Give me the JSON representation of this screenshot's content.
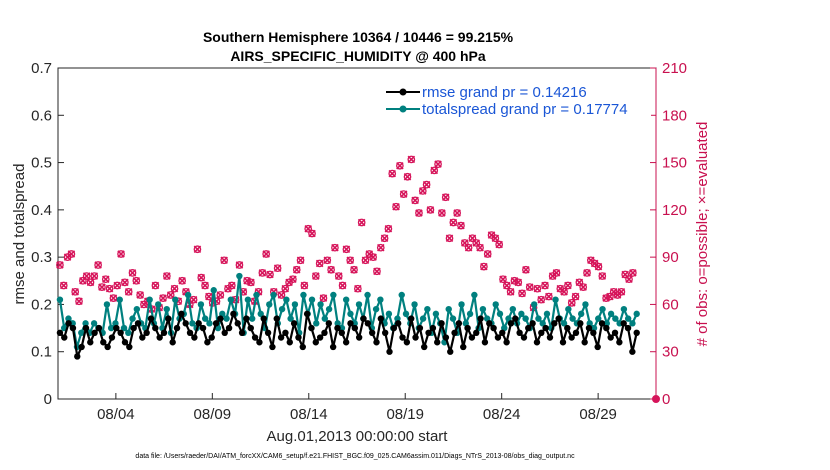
{
  "chart_data": {
    "type": "line",
    "title": "Southern Hemisphere 10364 / 10446 = 99.215%",
    "subtitle": "AIRS_SPECIFIC_HUMIDITY @ 400 hPa",
    "xlabel": "Aug.01,2013 00:00:00 start",
    "ylabel": "rmse and totalspread",
    "ylabel_right": "# of obs: o=possible; ×=evaluated",
    "footer": "data file: /Users/raeder/DAI/ATM_forcXX/CAM6_setup/f.e21.FHIST_BGC.f09_025.CAM6assim.011/Diags_NTrS_2013-08/obs_diag_output.nc",
    "x_ticks": [
      "08/04",
      "08/09",
      "08/14",
      "08/19",
      "08/24",
      "08/29"
    ],
    "x_tick_days": [
      4,
      9,
      14,
      19,
      24,
      29
    ],
    "x_range": [
      1,
      32
    ],
    "ylim": [
      0,
      0.7
    ],
    "y_ticks": [
      "0",
      "0.1",
      "0.2",
      "0.3",
      "0.4",
      "0.5",
      "0.6",
      "0.7"
    ],
    "ylim_right": [
      0,
      210
    ],
    "y_ticks_right": [
      "0",
      "30",
      "60",
      "90",
      "120",
      "150",
      "180",
      "210"
    ],
    "grid": false,
    "legend_position": "top-right",
    "colors": {
      "rmse": "#000000",
      "spread": "#00807f",
      "obs": "#d6145a",
      "legend_text": "#1a56d6"
    },
    "series": [
      {
        "name": "rmse grand pr = 0.14216",
        "axis": "left",
        "values": [
          0.14,
          0.13,
          0.16,
          0.15,
          0.09,
          0.11,
          0.15,
          0.12,
          0.14,
          0.15,
          0.12,
          0.11,
          0.13,
          0.15,
          0.14,
          0.12,
          0.11,
          0.15,
          0.16,
          0.13,
          0.14,
          0.17,
          0.15,
          0.13,
          0.14,
          0.17,
          0.12,
          0.15,
          0.18,
          0.16,
          0.14,
          0.13,
          0.16,
          0.15,
          0.12,
          0.13,
          0.16,
          0.17,
          0.14,
          0.15,
          0.18,
          0.16,
          0.14,
          0.17,
          0.15,
          0.13,
          0.12,
          0.17,
          0.14,
          0.11,
          0.17,
          0.13,
          0.14,
          0.12,
          0.16,
          0.13,
          0.11,
          0.18,
          0.15,
          0.12,
          0.13,
          0.14,
          0.16,
          0.11,
          0.15,
          0.14,
          0.12,
          0.16,
          0.15,
          0.13,
          0.17,
          0.16,
          0.14,
          0.12,
          0.17,
          0.14,
          0.1,
          0.15,
          0.16,
          0.13,
          0.12,
          0.17,
          0.13,
          0.15,
          0.11,
          0.14,
          0.15,
          0.12,
          0.16,
          0.13,
          0.1,
          0.14,
          0.16,
          0.11,
          0.15,
          0.13,
          0.14,
          0.17,
          0.12,
          0.16,
          0.15,
          0.13,
          0.14,
          0.12,
          0.16,
          0.17,
          0.14,
          0.13,
          0.15,
          0.16,
          0.12,
          0.14,
          0.15,
          0.13,
          0.16,
          0.17,
          0.12,
          0.15,
          0.13,
          0.14,
          0.16,
          0.12,
          0.15,
          0.14,
          0.11,
          0.16,
          0.15,
          0.13,
          0.14,
          0.12,
          0.16,
          0.15,
          0.1,
          0.14
        ]
      },
      {
        "name": "totalspread grand pr = 0.17774",
        "axis": "left",
        "values": [
          0.21,
          0.15,
          0.17,
          0.16,
          0.11,
          0.14,
          0.16,
          0.14,
          0.16,
          0.15,
          0.14,
          0.2,
          0.15,
          0.16,
          0.21,
          0.15,
          0.14,
          0.17,
          0.19,
          0.16,
          0.15,
          0.21,
          0.16,
          0.2,
          0.15,
          0.19,
          0.14,
          0.21,
          0.17,
          0.18,
          0.22,
          0.16,
          0.15,
          0.2,
          0.17,
          0.16,
          0.23,
          0.15,
          0.18,
          0.17,
          0.21,
          0.18,
          0.26,
          0.14,
          0.21,
          0.17,
          0.22,
          0.18,
          0.15,
          0.2,
          0.22,
          0.16,
          0.19,
          0.21,
          0.17,
          0.2,
          0.14,
          0.22,
          0.18,
          0.21,
          0.16,
          0.2,
          0.17,
          0.19,
          0.22,
          0.16,
          0.15,
          0.21,
          0.18,
          0.16,
          0.2,
          0.17,
          0.22,
          0.15,
          0.19,
          0.21,
          0.16,
          0.18,
          0.15,
          0.17,
          0.22,
          0.18,
          0.16,
          0.2,
          0.15,
          0.17,
          0.19,
          0.14,
          0.18,
          0.16,
          0.12,
          0.19,
          0.17,
          0.14,
          0.2,
          0.16,
          0.18,
          0.22,
          0.15,
          0.19,
          0.17,
          0.16,
          0.2,
          0.18,
          0.15,
          0.17,
          0.19,
          0.16,
          0.18,
          0.17,
          0.15,
          0.2,
          0.17,
          0.16,
          0.18,
          0.15,
          0.21,
          0.17,
          0.16,
          0.19,
          0.17,
          0.16,
          0.18,
          0.2,
          0.16,
          0.15,
          0.17,
          0.19,
          0.16,
          0.18,
          0.17,
          0.16,
          0.19,
          0.17,
          0.16,
          0.18
        ]
      },
      {
        "name": "obs possible",
        "axis": "right",
        "values": [
          85,
          72,
          90,
          92,
          68,
          62,
          75,
          78,
          74,
          78,
          85,
          71,
          76,
          70,
          64,
          72,
          92,
          74,
          68,
          80,
          75,
          66,
          60,
          62,
          57,
          72,
          58,
          64,
          78,
          66,
          70,
          62,
          75,
          68,
          60,
          63,
          95,
          77,
          72,
          65,
          61,
          62,
          66,
          88,
          70,
          72,
          63,
          85,
          68,
          75,
          74,
          62,
          68,
          80,
          92,
          79,
          68,
          83,
          66,
          70,
          74,
          76,
          82,
          88,
          72,
          108,
          105,
          78,
          86,
          64,
          88,
          82,
          96,
          78,
          72,
          95,
          88,
          82,
          70,
          112,
          88,
          92,
          90,
          81,
          96,
          102,
          108,
          143,
          122,
          148,
          130,
          141,
          152,
          126,
          118,
          132,
          136,
          120,
          145,
          149,
          118,
          128,
          102,
          112,
          118,
          110,
          99,
          96,
          102,
          99,
          96,
          84,
          92,
          104,
          102,
          98,
          76,
          72,
          68,
          75,
          74,
          67,
          82,
          71,
          58,
          70,
          63,
          72,
          65,
          78,
          80,
          70,
          68,
          72,
          61,
          65,
          74,
          71,
          80,
          88,
          86,
          84,
          78,
          64,
          65,
          68,
          66,
          68,
          79,
          76,
          80
        ]
      },
      {
        "name": "obs evaluated",
        "axis": "right",
        "values": [
          85,
          72,
          90,
          92,
          68,
          62,
          75,
          78,
          74,
          78,
          85,
          71,
          76,
          70,
          64,
          72,
          92,
          74,
          68,
          80,
          75,
          66,
          60,
          62,
          57,
          72,
          58,
          64,
          78,
          66,
          70,
          62,
          75,
          68,
          60,
          63,
          95,
          77,
          72,
          65,
          61,
          62,
          66,
          88,
          70,
          72,
          63,
          85,
          68,
          75,
          74,
          62,
          68,
          80,
          92,
          79,
          68,
          83,
          66,
          70,
          74,
          76,
          82,
          88,
          72,
          108,
          105,
          78,
          86,
          64,
          88,
          82,
          96,
          78,
          72,
          95,
          88,
          82,
          70,
          112,
          88,
          92,
          90,
          81,
          96,
          102,
          108,
          143,
          122,
          148,
          130,
          141,
          152,
          126,
          118,
          132,
          136,
          120,
          145,
          149,
          118,
          128,
          102,
          112,
          118,
          110,
          99,
          96,
          102,
          99,
          96,
          84,
          92,
          104,
          102,
          98,
          76,
          72,
          68,
          75,
          74,
          67,
          82,
          71,
          58,
          70,
          63,
          72,
          65,
          78,
          80,
          70,
          68,
          72,
          61,
          65,
          74,
          71,
          80,
          88,
          86,
          84,
          78,
          64,
          65,
          68,
          66,
          68,
          79,
          76,
          80
        ]
      }
    ],
    "obs_extra_point": {
      "x_day": 32,
      "value": 0
    }
  }
}
